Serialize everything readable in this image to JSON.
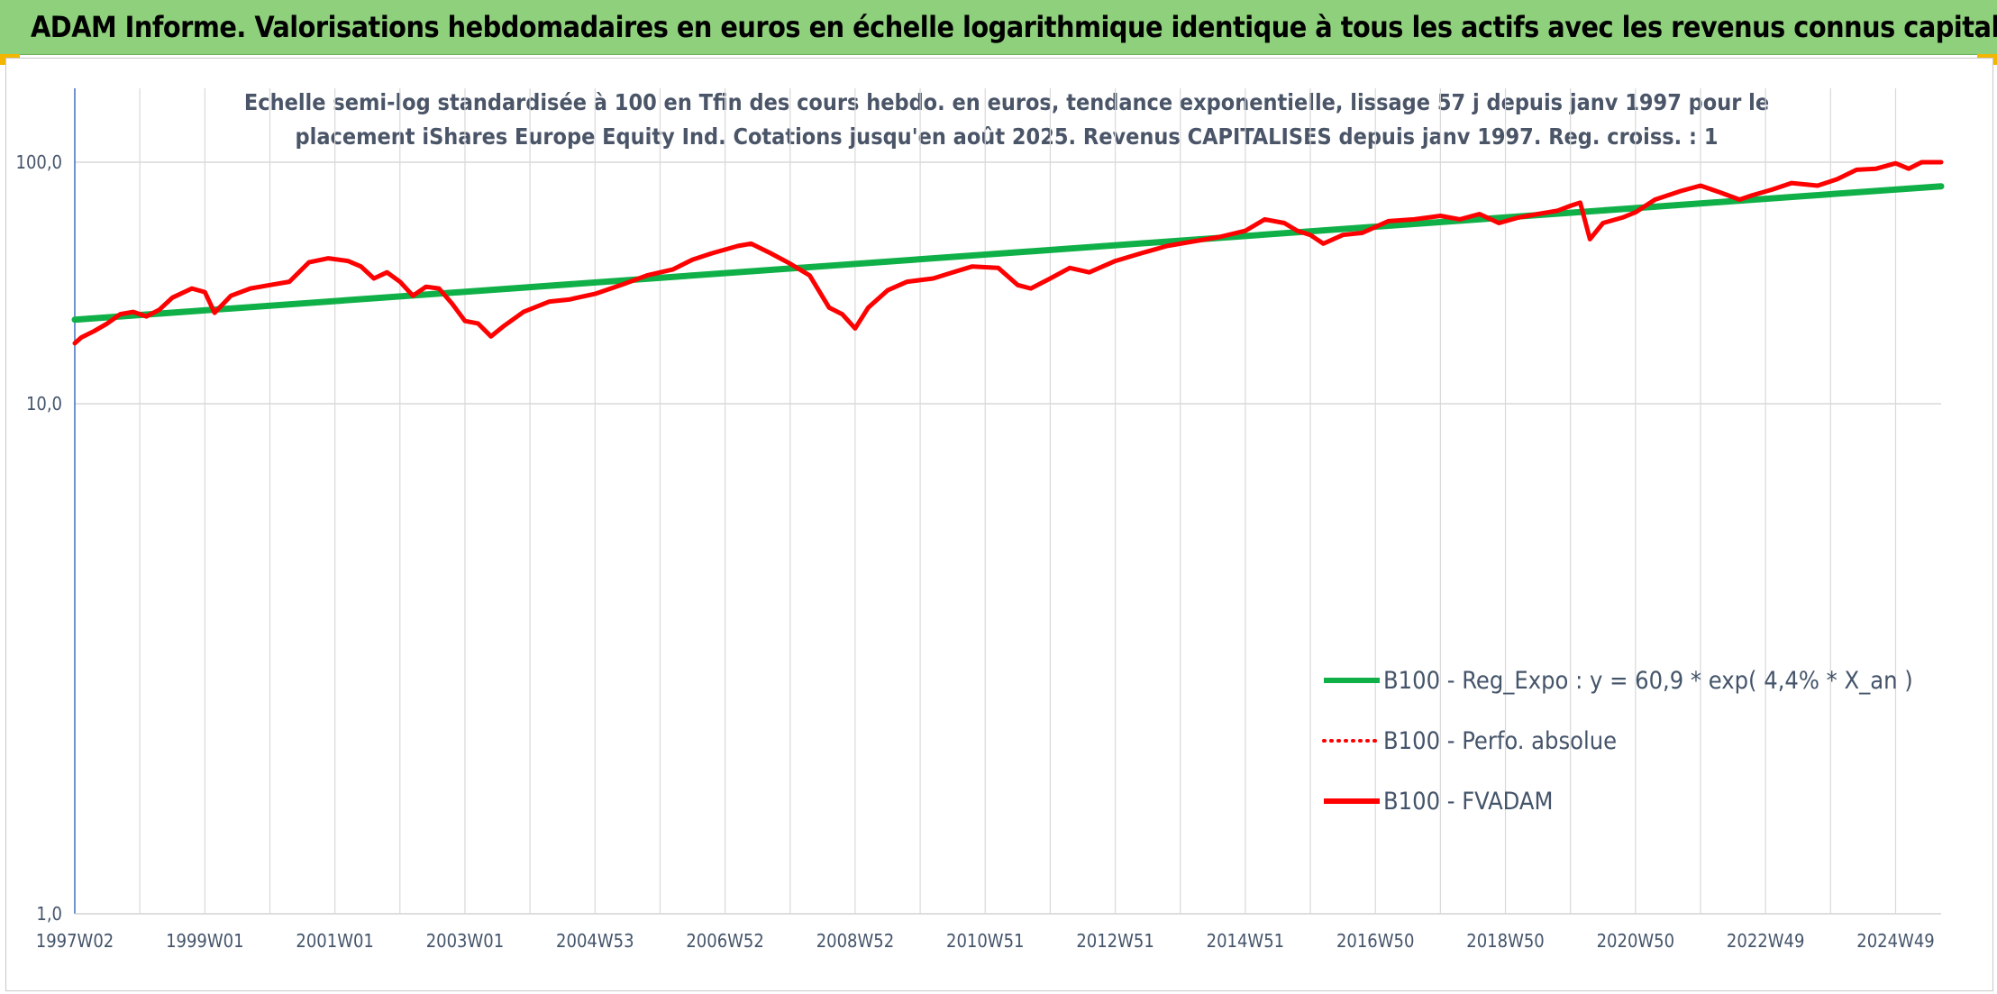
{
  "header": {
    "title": "ADAM Informe. Valorisations hebdomadaires en euros en échelle logarithmique identique à tous les actifs avec les revenus connus capitalisés"
  },
  "colors": {
    "header_bg": "#8fd07c",
    "corner_accent": "#f2b600",
    "trend": "#10b048",
    "price": "#ff0000",
    "grid": "#d9d9d9",
    "axis": "#4472c4",
    "text": "#44546a"
  },
  "chart_data": {
    "type": "line",
    "title_lines": [
      "Echelle semi-log standardisée à 100 en Tfin des cours hebdo. en euros, tendance exponentielle, lissage 57 j depuis janv 1997 pour le",
      "placement iShares Europe Equity Ind. Cotations jusqu'en août 2025. Revenus CAPITALISES depuis janv 1997. Reg. croiss. : 1"
    ],
    "y_scale": "log",
    "ylim": [
      1,
      200
    ],
    "y_ticks": [
      {
        "value": 1,
        "label": "1,0"
      },
      {
        "value": 10,
        "label": "10,0"
      },
      {
        "value": 100,
        "label": "100,0"
      }
    ],
    "xlim": [
      1997.0,
      2025.7
    ],
    "x_ticks": [
      {
        "value": 1997.0,
        "label": "1997W02"
      },
      {
        "value": 1999.0,
        "label": "1999W01"
      },
      {
        "value": 2001.0,
        "label": "2001W01"
      },
      {
        "value": 2003.0,
        "label": "2003W01"
      },
      {
        "value": 2005.0,
        "label": "2004W53"
      },
      {
        "value": 2007.0,
        "label": "2006W52"
      },
      {
        "value": 2009.0,
        "label": "2008W52"
      },
      {
        "value": 2011.0,
        "label": "2010W51"
      },
      {
        "value": 2013.0,
        "label": "2012W51"
      },
      {
        "value": 2015.0,
        "label": "2014W51"
      },
      {
        "value": 2017.0,
        "label": "2016W50"
      },
      {
        "value": 2019.0,
        "label": "2018W50"
      },
      {
        "value": 2021.0,
        "label": "2020W50"
      },
      {
        "value": 2023.0,
        "label": "2022W49"
      },
      {
        "value": 2025.0,
        "label": "2024W49"
      }
    ],
    "grid": true,
    "legend_position": "bottom-right",
    "series": [
      {
        "name": "B100 - Reg_Expo : y = 60,9 * exp( 4,4% *  X_an )",
        "style": "solid",
        "color": "#10b048",
        "x": [
          1997.0,
          2025.7
        ],
        "y": [
          22.3,
          79.5
        ]
      },
      {
        "name": "B100 - Perfo. absolue",
        "style": "dotted",
        "color": "#ff0000",
        "x": [],
        "y": []
      },
      {
        "name": "B100 - FVADAM",
        "style": "solid",
        "color": "#ff0000",
        "x": [
          1997.0,
          1997.1,
          1997.3,
          1997.5,
          1997.7,
          1997.9,
          1998.1,
          1998.3,
          1998.5,
          1998.8,
          1999.0,
          1999.15,
          1999.4,
          1999.7,
          2000.0,
          2000.3,
          2000.6,
          2000.9,
          2001.2,
          2001.4,
          2001.6,
          2001.8,
          2002.0,
          2002.2,
          2002.4,
          2002.6,
          2002.8,
          2003.0,
          2003.2,
          2003.4,
          2003.6,
          2003.9,
          2004.3,
          2004.6,
          2005.0,
          2005.4,
          2005.8,
          2006.2,
          2006.5,
          2006.8,
          2007.2,
          2007.4,
          2007.7,
          2008.0,
          2008.3,
          2008.6,
          2008.8,
          2009.0,
          2009.2,
          2009.5,
          2009.8,
          2010.2,
          2010.5,
          2010.8,
          2011.2,
          2011.5,
          2011.7,
          2012.0,
          2012.3,
          2012.6,
          2013.0,
          2013.4,
          2013.8,
          2014.2,
          2014.6,
          2015.0,
          2015.3,
          2015.6,
          2015.8,
          2016.0,
          2016.2,
          2016.5,
          2016.8,
          2017.2,
          2017.6,
          2018.0,
          2018.3,
          2018.6,
          2018.9,
          2019.2,
          2019.5,
          2019.8,
          2020.0,
          2020.15,
          2020.3,
          2020.5,
          2020.8,
          2021.0,
          2021.3,
          2021.7,
          2022.0,
          2022.3,
          2022.6,
          2022.8,
          2023.1,
          2023.4,
          2023.8,
          2024.1,
          2024.4,
          2024.7,
          2025.0,
          2025.2,
          2025.4,
          2025.7
        ],
        "y": [
          17.8,
          18.8,
          20.0,
          21.5,
          23.5,
          24.0,
          23.0,
          24.5,
          27.5,
          30.0,
          29.0,
          23.8,
          28.0,
          30.0,
          31.0,
          32.0,
          38.5,
          40.0,
          39.0,
          37.0,
          33.0,
          35.0,
          32.0,
          28.0,
          30.5,
          30.0,
          26.0,
          22.0,
          21.5,
          19.0,
          21.0,
          24.0,
          26.5,
          27.0,
          28.5,
          31.0,
          34.0,
          36.0,
          39.5,
          42.0,
          45.0,
          46.0,
          42.0,
          38.0,
          34.0,
          25.0,
          23.5,
          20.5,
          25.0,
          29.5,
          32.0,
          33.0,
          35.0,
          37.0,
          36.5,
          31.0,
          30.0,
          33.0,
          36.5,
          35.0,
          39.0,
          42.0,
          45.0,
          47.0,
          49.0,
          52.0,
          58.0,
          56.0,
          52.0,
          50.0,
          46.0,
          50.0,
          51.0,
          57.0,
          58.0,
          60.0,
          58.0,
          61.0,
          56.0,
          59.0,
          61.0,
          63.0,
          66.0,
          68.0,
          48.0,
          56.0,
          59.0,
          62.0,
          70.0,
          76.0,
          80.0,
          75.0,
          70.0,
          73.0,
          77.0,
          82.0,
          80.0,
          85.0,
          93.0,
          94.0,
          99.0,
          94.0,
          100.0,
          100.0
        ]
      }
    ]
  }
}
